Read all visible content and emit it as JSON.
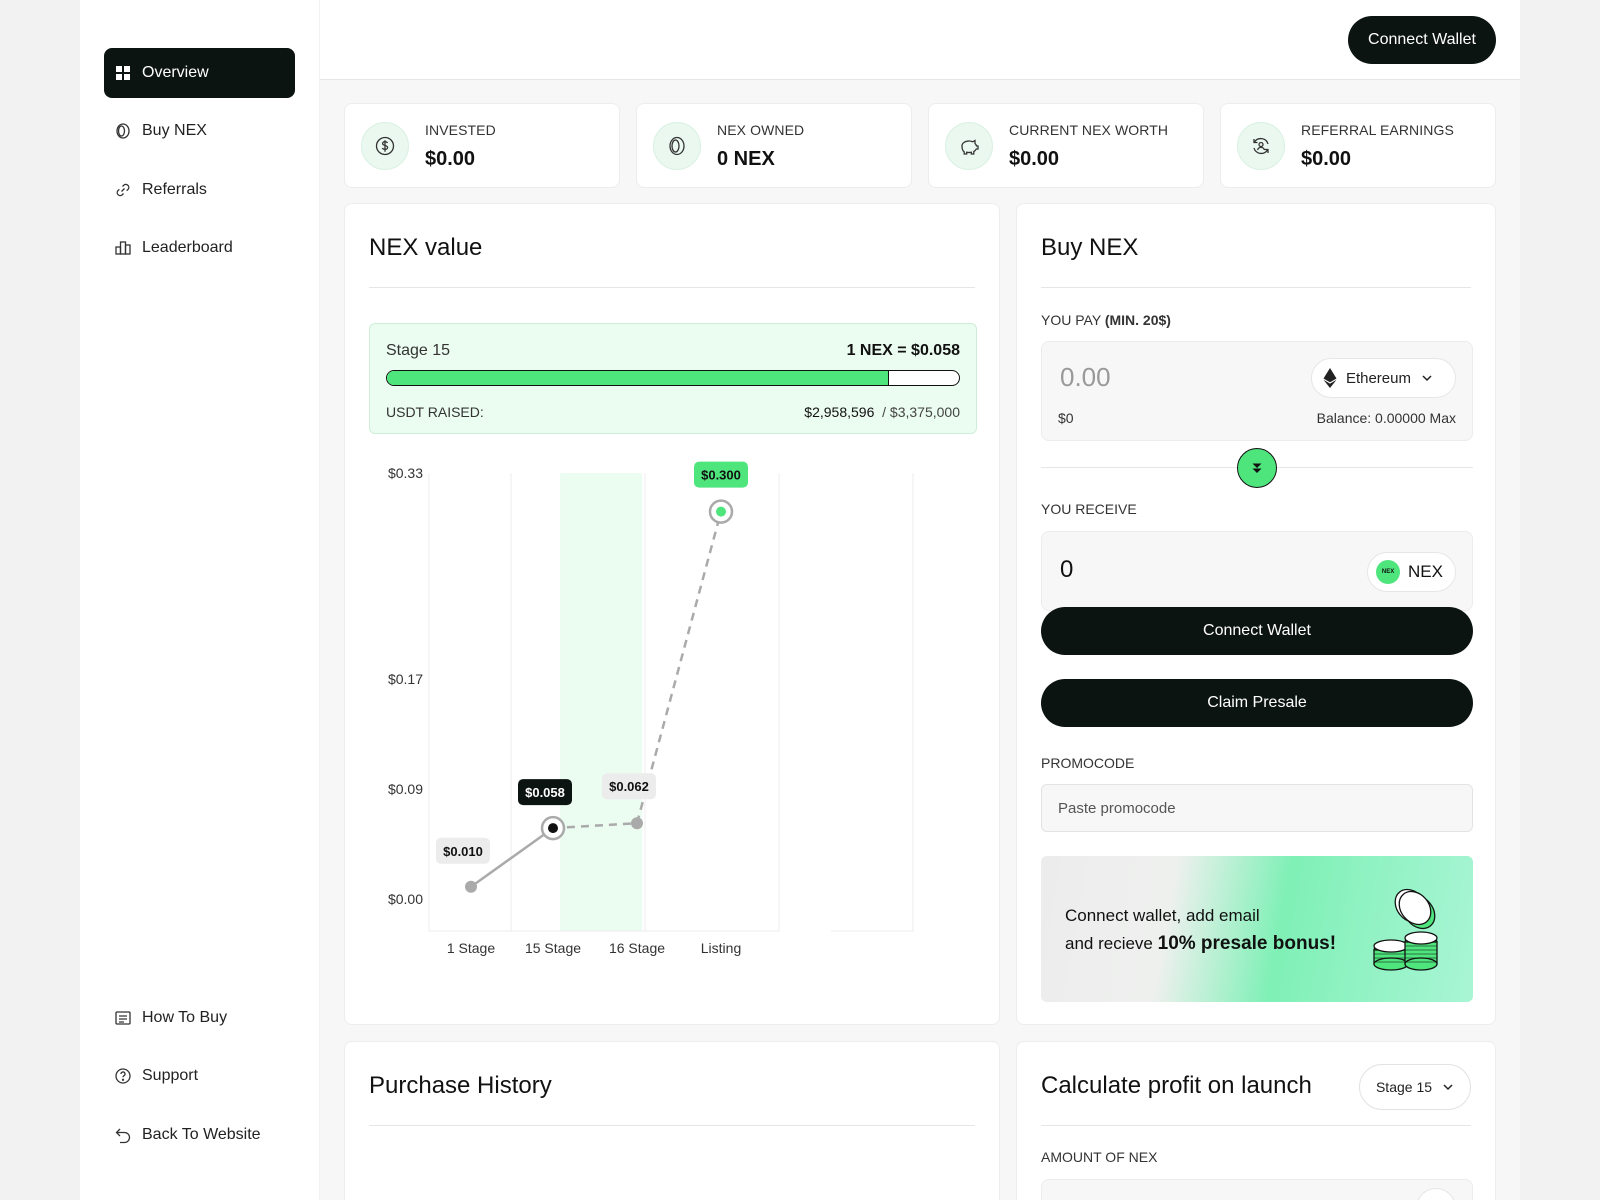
{
  "sidebar": {
    "top_items": [
      {
        "label": "Overview",
        "icon": "grid-icon",
        "active": true
      },
      {
        "label": "Buy NEX",
        "icon": "coin-icon"
      },
      {
        "label": "Referrals",
        "icon": "link-icon"
      },
      {
        "label": "Leaderboard",
        "icon": "leaderboard-icon"
      }
    ],
    "bottom_items": [
      {
        "label": "How To Buy",
        "icon": "list-icon"
      },
      {
        "label": "Support",
        "icon": "help-icon"
      },
      {
        "label": "Back To Website",
        "icon": "back-arrow-icon"
      }
    ]
  },
  "header": {
    "connect_label": "Connect Wallet"
  },
  "stats": [
    {
      "label": "INVESTED",
      "value": "$0.00",
      "icon": "dollar-icon"
    },
    {
      "label": "NEX OWNED",
      "value": "0 NEX",
      "icon": "coin-icon"
    },
    {
      "label": "CURRENT NEX WORTH",
      "value": "$0.00",
      "icon": "piggy-bank-icon"
    },
    {
      "label": "REFERRAL EARNINGS",
      "value": "$0.00",
      "icon": "refresh-user-icon"
    }
  ],
  "nex_value": {
    "title": "NEX value",
    "stage": "Stage 15",
    "rate": "1 NEX = $0.058",
    "raised_label": "USDT RAISED:",
    "raised": "$2,958,596",
    "target": "/ $3,375,000",
    "progress": 0.877
  },
  "chart_data": {
    "type": "line",
    "categories": [
      "1 Stage",
      "15 Stage",
      "16 Stage",
      "Listing"
    ],
    "values": [
      0.01,
      0.058,
      0.062,
      0.3
    ],
    "value_labels": [
      "$0.010",
      "$0.058",
      "$0.062",
      "$0.300"
    ],
    "y_ticks": [
      "$0.33",
      "$0.17",
      "$0.09",
      "$0.00"
    ],
    "current_index": 1,
    "highlight_band": "15 Stage - 16 Stage"
  },
  "buy": {
    "title": "Buy NEX",
    "pay_label": "YOU PAY",
    "pay_min": "(MIN. 20$)",
    "pay_amount": "0.00",
    "pay_usd": "$0",
    "balance": "Balance: 0.00000 Max",
    "pay_token": "Ethereum",
    "receive_label": "YOU RECEIVE",
    "receive_amount": "0",
    "receive_token": "NEX",
    "receive_coin_text": "NEX",
    "connect_label": "Connect Wallet",
    "claim_label": "Claim Presale",
    "promo_label": "PROMOCODE",
    "promo_placeholder": "Paste promocode",
    "bonus_line1": "Connect wallet, add email",
    "bonus_line2": "and recieve",
    "bonus_bold": "10% presale bonus!"
  },
  "history": {
    "title": "Purchase History"
  },
  "calc": {
    "title": "Calculate profit on launch",
    "stage": "Stage 15",
    "amount_label": "AMOUNT OF NEX"
  },
  "colors": {
    "accent": "#4ee57d",
    "dark": "#0c1412",
    "highlight": "#ebfcf0"
  }
}
